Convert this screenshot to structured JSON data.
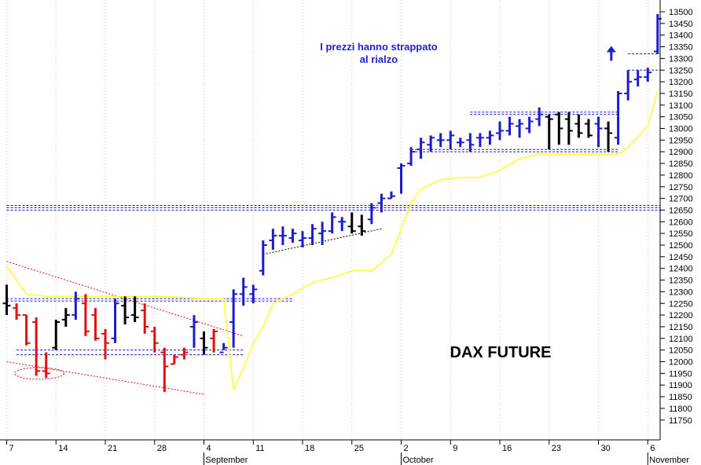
{
  "chart_data": {
    "type": "ohlc",
    "title": "DAX FUTURE",
    "annotation": {
      "lines": [
        "I prezzi hanno strappato",
        "al rialzo"
      ],
      "color": "#1f1fd0"
    },
    "ylim": [
      11700,
      13550
    ],
    "y_ticks": [
      11750,
      11800,
      11850,
      11900,
      11950,
      12000,
      12050,
      12100,
      12150,
      12200,
      12250,
      12300,
      12350,
      12400,
      12450,
      12500,
      12550,
      12600,
      12650,
      12700,
      12750,
      12800,
      12850,
      12900,
      12950,
      13000,
      13050,
      13100,
      13150,
      13200,
      13250,
      13300,
      13350,
      13400,
      13450,
      13500
    ],
    "x_tick_labels": [
      "7",
      "14",
      "21",
      "28",
      "4",
      "11",
      "18",
      "25",
      "2",
      "9",
      "16",
      "23",
      "30",
      "6"
    ],
    "x_tick_day_index": [
      -2,
      3,
      8,
      13,
      18,
      23,
      28,
      33,
      38,
      43,
      48,
      53,
      58,
      63
    ],
    "month_labels": [
      {
        "label": "September",
        "day_index": 18
      },
      {
        "label": "October",
        "day_index": 38
      },
      {
        "label": "November",
        "day_index": 63
      }
    ],
    "colors": {
      "up": "#1c1ccc",
      "down": "#e01010",
      "neutral": "#000000",
      "moving_average": "#ffff33",
      "support_line": "#1c1ccc",
      "trend_line_red": "#e01010",
      "trend_line_black": "#000000",
      "grid": "#c8c8c8"
    },
    "bars": [
      {
        "d": -2,
        "o": 12250,
        "h": 12330,
        "l": 12200,
        "c": 12240,
        "col": "neutral"
      },
      {
        "d": -1,
        "o": 12230,
        "h": 12250,
        "l": 12180,
        "c": 12200,
        "col": "down"
      },
      {
        "d": 0,
        "o": 12200,
        "h": 12200,
        "l": 12070,
        "c": 12080,
        "col": "down"
      },
      {
        "d": 1,
        "o": 12170,
        "h": 12190,
        "l": 11940,
        "c": 11960,
        "col": "down"
      },
      {
        "d": 2,
        "o": 11960,
        "h": 12040,
        "l": 11930,
        "c": 11950,
        "col": "down"
      },
      {
        "d": 3,
        "o": 12060,
        "h": 12180,
        "l": 12050,
        "c": 12170,
        "col": "neutral"
      },
      {
        "d": 4,
        "o": 12180,
        "h": 12230,
        "l": 12150,
        "c": 12200,
        "col": "neutral"
      },
      {
        "d": 5,
        "o": 12200,
        "h": 12300,
        "l": 12180,
        "c": 12270,
        "col": "up"
      },
      {
        "d": 6,
        "o": 12250,
        "h": 12290,
        "l": 12110,
        "c": 12130,
        "col": "down"
      },
      {
        "d": 7,
        "o": 12200,
        "h": 12230,
        "l": 12090,
        "c": 12100,
        "col": "down"
      },
      {
        "d": 8,
        "o": 12120,
        "h": 12140,
        "l": 12010,
        "c": 12080,
        "col": "down"
      },
      {
        "d": 9,
        "o": 12100,
        "h": 12270,
        "l": 12080,
        "c": 12250,
        "col": "up"
      },
      {
        "d": 10,
        "o": 12240,
        "h": 12280,
        "l": 12160,
        "c": 12190,
        "col": "neutral"
      },
      {
        "d": 11,
        "o": 12200,
        "h": 12280,
        "l": 12170,
        "c": 12190,
        "col": "neutral"
      },
      {
        "d": 12,
        "o": 12220,
        "h": 12250,
        "l": 12120,
        "c": 12150,
        "col": "down"
      },
      {
        "d": 13,
        "o": 12130,
        "h": 12150,
        "l": 12040,
        "c": 12080,
        "col": "down"
      },
      {
        "d": 14,
        "o": 12040,
        "h": 12060,
        "l": 11870,
        "c": 11980,
        "col": "down"
      },
      {
        "d": 15,
        "o": 11990,
        "h": 12030,
        "l": 11990,
        "c": 12020,
        "col": "down"
      },
      {
        "d": 16,
        "o": 12030,
        "h": 12060,
        "l": 12010,
        "c": 12040,
        "col": "down"
      },
      {
        "d": 17,
        "o": 12150,
        "h": 12200,
        "l": 12060,
        "c": 12170,
        "col": "up"
      },
      {
        "d": 18,
        "o": 12100,
        "h": 12130,
        "l": 12030,
        "c": 12060,
        "col": "neutral"
      },
      {
        "d": 19,
        "o": 12100,
        "h": 12140,
        "l": 12040,
        "c": 12130,
        "col": "down"
      },
      {
        "d": 20,
        "o": 12040,
        "h": 12080,
        "l": 12050,
        "c": 12060,
        "col": "up"
      },
      {
        "d": 21,
        "o": 12170,
        "h": 12310,
        "l": 12060,
        "c": 12290,
        "col": "up"
      },
      {
        "d": 22,
        "o": 12290,
        "h": 12360,
        "l": 12240,
        "c": 12320,
        "col": "up"
      },
      {
        "d": 23,
        "o": 12290,
        "h": 12330,
        "l": 12250,
        "c": 12310,
        "col": "up"
      },
      {
        "d": 24,
        "o": 12390,
        "h": 12520,
        "l": 12370,
        "c": 12500,
        "col": "up"
      },
      {
        "d": 25,
        "o": 12520,
        "h": 12570,
        "l": 12480,
        "c": 12540,
        "col": "up"
      },
      {
        "d": 26,
        "o": 12540,
        "h": 12580,
        "l": 12500,
        "c": 12540,
        "col": "up"
      },
      {
        "d": 27,
        "o": 12530,
        "h": 12570,
        "l": 12510,
        "c": 12550,
        "col": "up"
      },
      {
        "d": 28,
        "o": 12520,
        "h": 12560,
        "l": 12490,
        "c": 12530,
        "col": "up"
      },
      {
        "d": 29,
        "o": 12530,
        "h": 12590,
        "l": 12500,
        "c": 12570,
        "col": "up"
      },
      {
        "d": 30,
        "o": 12550,
        "h": 12600,
        "l": 12500,
        "c": 12560,
        "col": "up"
      },
      {
        "d": 31,
        "o": 12560,
        "h": 12640,
        "l": 12550,
        "c": 12620,
        "col": "up"
      },
      {
        "d": 32,
        "o": 12600,
        "h": 12620,
        "l": 12560,
        "c": 12600,
        "col": "up"
      },
      {
        "d": 33,
        "o": 12580,
        "h": 12640,
        "l": 12550,
        "c": 12560,
        "col": "neutral"
      },
      {
        "d": 34,
        "o": 12580,
        "h": 12630,
        "l": 12540,
        "c": 12560,
        "col": "neutral"
      },
      {
        "d": 35,
        "o": 12610,
        "h": 12680,
        "l": 12590,
        "c": 12660,
        "col": "up"
      },
      {
        "d": 36,
        "o": 12680,
        "h": 12720,
        "l": 12640,
        "c": 12700,
        "col": "up"
      },
      {
        "d": 37,
        "o": 12700,
        "h": 12730,
        "l": 12700,
        "c": 12710,
        "col": "up"
      },
      {
        "d": 38,
        "o": 12830,
        "h": 12850,
        "l": 12720,
        "c": 12840,
        "col": "up"
      },
      {
        "d": 39,
        "o": 12850,
        "h": 12920,
        "l": 12840,
        "c": 12900,
        "col": "up"
      },
      {
        "d": 40,
        "o": 12910,
        "h": 12960,
        "l": 12870,
        "c": 12940,
        "col": "up"
      },
      {
        "d": 41,
        "o": 12930,
        "h": 12970,
        "l": 12900,
        "c": 12960,
        "col": "up"
      },
      {
        "d": 42,
        "o": 12950,
        "h": 12980,
        "l": 12920,
        "c": 12950,
        "col": "up"
      },
      {
        "d": 43,
        "o": 12950,
        "h": 12990,
        "l": 12910,
        "c": 12970,
        "col": "up"
      },
      {
        "d": 44,
        "o": 12940,
        "h": 12960,
        "l": 12920,
        "c": 12940,
        "col": "up"
      },
      {
        "d": 45,
        "o": 12950,
        "h": 12980,
        "l": 12900,
        "c": 12930,
        "col": "up"
      },
      {
        "d": 46,
        "o": 12960,
        "h": 12980,
        "l": 12920,
        "c": 12960,
        "col": "up"
      },
      {
        "d": 47,
        "o": 12960,
        "h": 12990,
        "l": 12930,
        "c": 12970,
        "col": "up"
      },
      {
        "d": 48,
        "o": 12980,
        "h": 13030,
        "l": 12950,
        "c": 12990,
        "col": "up"
      },
      {
        "d": 49,
        "o": 12990,
        "h": 13050,
        "l": 12970,
        "c": 13020,
        "col": "up"
      },
      {
        "d": 50,
        "o": 13010,
        "h": 13040,
        "l": 12960,
        "c": 13020,
        "col": "up"
      },
      {
        "d": 51,
        "o": 13000,
        "h": 13050,
        "l": 12980,
        "c": 13030,
        "col": "up"
      },
      {
        "d": 52,
        "o": 13040,
        "h": 13090,
        "l": 13010,
        "c": 13060,
        "col": "up"
      },
      {
        "d": 53,
        "o": 13050,
        "h": 13060,
        "l": 12910,
        "c": 13040,
        "col": "neutral"
      },
      {
        "d": 54,
        "o": 13060,
        "h": 13070,
        "l": 12930,
        "c": 13000,
        "col": "neutral"
      },
      {
        "d": 55,
        "o": 13040,
        "h": 13070,
        "l": 12930,
        "c": 12990,
        "col": "neutral"
      },
      {
        "d": 56,
        "o": 13020,
        "h": 13060,
        "l": 12960,
        "c": 12980,
        "col": "neutral"
      },
      {
        "d": 57,
        "o": 13020,
        "h": 13040,
        "l": 12960,
        "c": 12970,
        "col": "neutral"
      },
      {
        "d": 58,
        "o": 13020,
        "h": 13050,
        "l": 12920,
        "c": 13000,
        "col": "up"
      },
      {
        "d": 59,
        "o": 13000,
        "h": 13030,
        "l": 12900,
        "c": 12980,
        "col": "neutral"
      },
      {
        "d": 60,
        "o": 12960,
        "h": 13160,
        "l": 12930,
        "c": 13150,
        "col": "up"
      },
      {
        "d": 61,
        "o": 13150,
        "h": 13250,
        "l": 13120,
        "c": 13200,
        "col": "up"
      },
      {
        "d": 62,
        "o": 13210,
        "h": 13250,
        "l": 13180,
        "c": 13220,
        "col": "up"
      },
      {
        "d": 63,
        "o": 13220,
        "h": 13260,
        "l": 13200,
        "c": 13240,
        "col": "up"
      },
      {
        "d": 64,
        "o": 13330,
        "h": 13490,
        "l": 13320,
        "c": 13470,
        "col": "up"
      }
    ],
    "moving_average": [
      [
        -2,
        12410
      ],
      [
        0,
        12290
      ],
      [
        2,
        12280
      ],
      [
        5,
        12280
      ],
      [
        10,
        12280
      ],
      [
        14,
        12280
      ],
      [
        18,
        12270
      ],
      [
        20,
        12270
      ],
      [
        21,
        11880
      ],
      [
        22,
        11970
      ],
      [
        23,
        12080
      ],
      [
        24,
        12150
      ],
      [
        25,
        12250
      ],
      [
        27,
        12290
      ],
      [
        29,
        12340
      ],
      [
        31,
        12360
      ],
      [
        33,
        12390
      ],
      [
        35,
        12390
      ],
      [
        37,
        12460
      ],
      [
        38,
        12570
      ],
      [
        39,
        12680
      ],
      [
        40,
        12740
      ],
      [
        42,
        12780
      ],
      [
        44,
        12790
      ],
      [
        46,
        12790
      ],
      [
        48,
        12820
      ],
      [
        50,
        12870
      ],
      [
        52,
        12890
      ],
      [
        54,
        12890
      ],
      [
        56,
        12890
      ],
      [
        58,
        12890
      ],
      [
        60,
        12890
      ],
      [
        61,
        12920
      ],
      [
        63,
        13010
      ],
      [
        64,
        13160
      ]
    ],
    "horizontal_levels": [
      {
        "y": 12670,
        "from": -2,
        "to": 66
      },
      {
        "y": 12650,
        "from": -2,
        "to": 66
      },
      {
        "y": 12660,
        "from": -2,
        "to": 66
      },
      {
        "y": 12270,
        "from": -2,
        "to": 27
      },
      {
        "y": 12260,
        "from": -2,
        "to": 27
      },
      {
        "y": 12050,
        "from": -1,
        "to": 22
      },
      {
        "y": 12030,
        "from": -1,
        "to": 22
      },
      {
        "y": 12910,
        "from": 39,
        "to": 60
      },
      {
        "y": 12900,
        "from": 39,
        "to": 60
      },
      {
        "y": 13070,
        "from": 45,
        "to": 60
      },
      {
        "y": 13060,
        "from": 45,
        "to": 60
      },
      {
        "y": 13320,
        "from": 61,
        "to": 65
      },
      {
        "y": 13250,
        "from": 61,
        "to": 65
      }
    ],
    "trend_lines": [
      {
        "x1": -2,
        "y1": 12430,
        "x2": 22,
        "y2": 12110,
        "col": "trend_line_red"
      },
      {
        "x1": -2,
        "y1": 12000,
        "x2": 18,
        "y2": 11860,
        "col": "trend_line_red"
      },
      {
        "x1": 24,
        "y1": 12460,
        "x2": 36,
        "y2": 12570,
        "col": "trend_line_black"
      }
    ],
    "ellipse": {
      "cx": 1.3,
      "cy": 11950,
      "rx": 2.5,
      "ry": 25
    },
    "arrow_up": {
      "x": 59.3,
      "y_from": 13290,
      "y_to": 13350
    }
  }
}
